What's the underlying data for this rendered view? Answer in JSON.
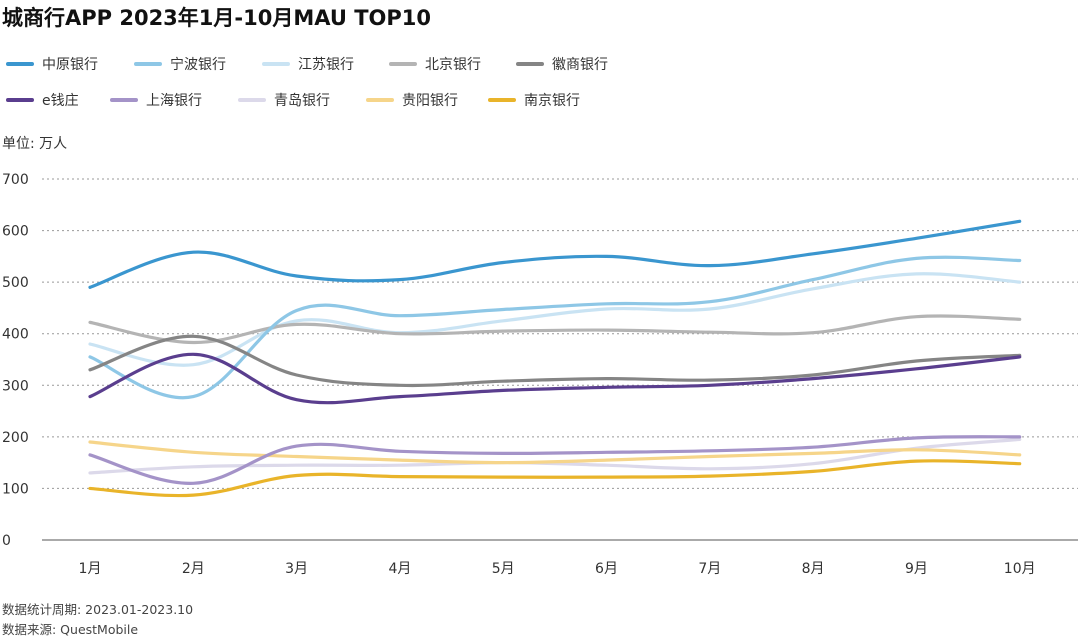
{
  "title": "城商行APP 2023年1月-10月MAU TOP10",
  "unit_label": "单位: 万人",
  "footer": {
    "period": "数据统计周期: 2023.01-2023.10",
    "source": "数据来源: QuestMobile"
  },
  "legend": [
    {
      "name": "中原银行",
      "color": "#3a96cf"
    },
    {
      "name": "宁波银行",
      "color": "#8ec7e6"
    },
    {
      "name": "江苏银行",
      "color": "#c9e3f3"
    },
    {
      "name": "北京银行",
      "color": "#b4b4b4"
    },
    {
      "name": "徽商银行",
      "color": "#858585"
    },
    {
      "name": "e钱庄",
      "color": "#5a3e8e"
    },
    {
      "name": "上海银行",
      "color": "#a493c8"
    },
    {
      "name": "青岛银行",
      "color": "#dcd9ea"
    },
    {
      "name": "贵阳银行",
      "color": "#f6d58a"
    },
    {
      "name": "南京银行",
      "color": "#e9b42a"
    }
  ],
  "chart_data": {
    "type": "line",
    "categories": [
      "1月",
      "2月",
      "3月",
      "4月",
      "5月",
      "6月",
      "7月",
      "8月",
      "9月",
      "10月"
    ],
    "ylim": [
      0,
      700
    ],
    "yticks": [
      0,
      100,
      200,
      300,
      400,
      500,
      600,
      700
    ],
    "grid": true,
    "legend_position": "top-left",
    "series": [
      {
        "name": "中原银行",
        "color": "#3a96cf",
        "values": [
          490,
          558,
          512,
          505,
          538,
          550,
          532,
          555,
          585,
          618
        ]
      },
      {
        "name": "宁波银行",
        "color": "#8ec7e6",
        "values": [
          355,
          278,
          445,
          435,
          447,
          458,
          462,
          505,
          546,
          542
        ]
      },
      {
        "name": "江苏银行",
        "color": "#c9e3f3",
        "values": [
          380,
          340,
          425,
          402,
          425,
          448,
          448,
          487,
          516,
          500
        ]
      },
      {
        "name": "北京银行",
        "color": "#b4b4b4",
        "values": [
          422,
          383,
          418,
          400,
          405,
          407,
          403,
          402,
          433,
          428
        ]
      },
      {
        "name": "徽商银行",
        "color": "#858585",
        "values": [
          330,
          395,
          320,
          300,
          308,
          313,
          310,
          320,
          347,
          358
        ]
      },
      {
        "name": "e钱庄",
        "color": "#5a3e8e",
        "values": [
          278,
          360,
          272,
          278,
          290,
          296,
          300,
          313,
          332,
          355
        ]
      },
      {
        "name": "上海银行",
        "color": "#a493c8",
        "values": [
          165,
          110,
          182,
          172,
          168,
          170,
          173,
          180,
          198,
          200
        ]
      },
      {
        "name": "青岛银行",
        "color": "#dcd9ea",
        "values": [
          130,
          142,
          145,
          145,
          150,
          145,
          138,
          148,
          178,
          195
        ]
      },
      {
        "name": "贵阳银行",
        "color": "#f6d58a",
        "values": [
          190,
          170,
          162,
          155,
          150,
          155,
          162,
          168,
          175,
          165
        ]
      },
      {
        "name": "南京银行",
        "color": "#e9b42a",
        "values": [
          100,
          87,
          125,
          123,
          122,
          122,
          124,
          133,
          153,
          148
        ]
      }
    ]
  }
}
